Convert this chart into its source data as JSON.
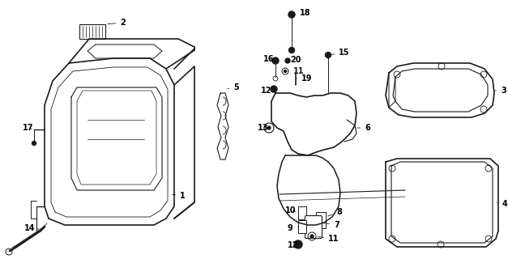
{
  "bg_color": "#ffffff",
  "line_color": "#1a1a1a",
  "label_color": "#000000",
  "fig_width": 6.27,
  "fig_height": 3.2,
  "dpi": 100
}
